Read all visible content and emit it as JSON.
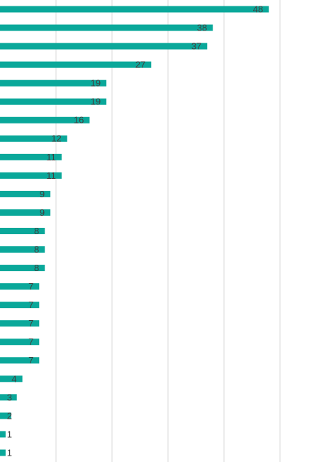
{
  "chart_data": {
    "type": "bar",
    "orientation": "horizontal",
    "categories": [
      null,
      null,
      null,
      null,
      null,
      null,
      null,
      null,
      null,
      null,
      null,
      null,
      null,
      null,
      null,
      null,
      null,
      null,
      null,
      null,
      null,
      null,
      null,
      null,
      null
    ],
    "values": [
      48,
      38,
      37,
      27,
      19,
      19,
      16,
      12,
      11,
      11,
      9,
      9,
      8,
      8,
      8,
      7,
      7,
      7,
      7,
      7,
      4,
      3,
      2,
      1,
      1
    ],
    "color": "#0aa89a",
    "xlim": [
      0,
      60
    ],
    "xticks": [
      10,
      20,
      30,
      40,
      50
    ],
    "grid": true
  }
}
